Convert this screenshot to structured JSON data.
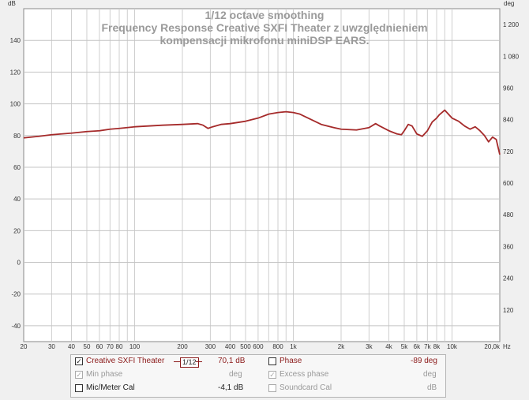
{
  "chart_data": {
    "type": "line",
    "title": "1/12 octave smoothing",
    "subtitle_lines": [
      "Frequency Response Creative SXFI Theater z uwzględnieniem",
      "kompensacji mikrofonu miniDSP EARS."
    ],
    "left_axis_unit": "dB",
    "right_axis_unit": "deg",
    "x_axis_unit": "Hz",
    "xscale": "log",
    "xlim": [
      20,
      20000
    ],
    "ylim": [
      -50,
      160
    ],
    "right_ylim": [
      0,
      1260
    ],
    "grid": true,
    "y_ticks": [
      "140",
      "120",
      "100",
      "80",
      "60",
      "40",
      "20",
      "0",
      "-20",
      "-40"
    ],
    "y_tick_values": [
      140,
      120,
      100,
      80,
      60,
      40,
      20,
      0,
      -20,
      -40
    ],
    "right_ticks": [
      "1 200",
      "1 080",
      "960",
      "840",
      "720",
      "600",
      "480",
      "360",
      "240",
      "120"
    ],
    "right_tick_values": [
      1200,
      1080,
      960,
      840,
      720,
      600,
      480,
      360,
      240,
      120
    ],
    "x_ticks": [
      "20",
      "30",
      "40",
      "50",
      "60",
      "70",
      "80",
      "100",
      "200",
      "300",
      "400",
      "500",
      "600",
      "800",
      "1k",
      "2k",
      "3k",
      "4k",
      "5k",
      "6k",
      "7k",
      "8k",
      "10k",
      "20,0k"
    ],
    "x_tick_values": [
      20,
      30,
      40,
      50,
      60,
      70,
      80,
      100,
      200,
      300,
      400,
      500,
      600,
      800,
      1000,
      2000,
      3000,
      4000,
      5000,
      6000,
      7000,
      8000,
      10000,
      20000
    ],
    "series": [
      {
        "name": "Creative SXFI Theater",
        "color": "#a52a2a",
        "x": [
          20,
          25,
          30,
          40,
          50,
          60,
          70,
          80,
          100,
          150,
          200,
          250,
          270,
          290,
          310,
          350,
          400,
          500,
          600,
          700,
          800,
          900,
          1000,
          1100,
          1300,
          1500,
          1800,
          2000,
          2500,
          3000,
          3300,
          3500,
          4000,
          4500,
          4800,
          5000,
          5300,
          5600,
          6000,
          6500,
          7000,
          7500,
          8000,
          8300,
          9000,
          10000,
          11000,
          12000,
          13000,
          14000,
          15000,
          16000,
          17000,
          18000,
          19000,
          20000
        ],
        "y": [
          78.5,
          79.5,
          80.5,
          81.5,
          82.5,
          83,
          84,
          84.5,
          85.5,
          86.5,
          87,
          87.5,
          86.5,
          84.5,
          85.5,
          87,
          87.5,
          89,
          91,
          93.5,
          94.5,
          95,
          94.5,
          93.5,
          90,
          87,
          85,
          84,
          83.5,
          85,
          87.5,
          86,
          83,
          81,
          80.5,
          83,
          87,
          86,
          81,
          79.5,
          83,
          88.5,
          91,
          93,
          96,
          91,
          89,
          86,
          84,
          85.5,
          83,
          80,
          76,
          79,
          77.5,
          68
        ]
      }
    ]
  },
  "legend": {
    "row1": {
      "name": "Creative SXFI Theater",
      "checked": "✓",
      "smoothing": "1/12",
      "value": "70,1 dB",
      "phase_label": "Phase",
      "phase_value": "-89 deg"
    },
    "row2": {
      "min_phase": "Min phase",
      "min_phase_unit": "deg",
      "excess_phase": "Excess phase",
      "excess_phase_unit": "deg",
      "checked": "✓"
    },
    "row3": {
      "mic_cal": "Mic/Meter Cal",
      "mic_cal_value": "-4,1 dB",
      "soundcard_cal": "Soundcard Cal",
      "soundcard_cal_unit": "dB"
    }
  }
}
